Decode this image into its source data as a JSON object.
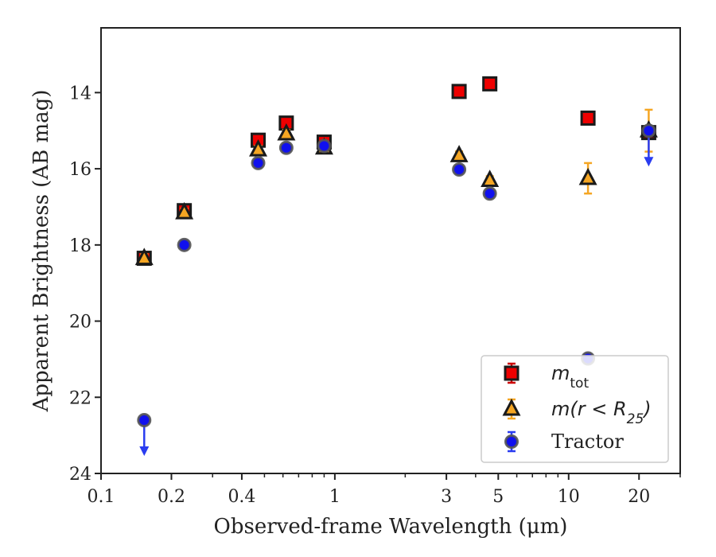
{
  "chart_data": {
    "type": "scatter",
    "xlabel": "Observed-frame Wavelength (μm)",
    "ylabel": "Apparent Brightness (AB mag)",
    "xscale": "log",
    "xlim": [
      0.1,
      30
    ],
    "ylim": [
      24,
      12.3
    ],
    "y_inverted": true,
    "x_ticks": [
      {
        "value": 0.1,
        "label": "0.1"
      },
      {
        "value": 0.2,
        "label": "0.2"
      },
      {
        "value": 0.4,
        "label": "0.4"
      },
      {
        "value": 1,
        "label": "1"
      },
      {
        "value": 3,
        "label": "3"
      },
      {
        "value": 5,
        "label": "5"
      },
      {
        "value": 10,
        "label": "10"
      },
      {
        "value": 20,
        "label": "20"
      }
    ],
    "y_ticks": [
      {
        "value": 14,
        "label": "14"
      },
      {
        "value": 16,
        "label": "16"
      },
      {
        "value": 18,
        "label": "18"
      },
      {
        "value": 20,
        "label": "20"
      },
      {
        "value": 22,
        "label": "22"
      },
      {
        "value": 24,
        "label": "24"
      }
    ],
    "legend_position": "lower-right",
    "series": [
      {
        "name": "m_tot",
        "legend_main": "m",
        "legend_sub": "tot",
        "marker": "square",
        "color": "#ee0000",
        "errcolor": "#cc0000",
        "points": [
          {
            "x": 0.153,
            "y": 18.35,
            "err": 0.1
          },
          {
            "x": 0.227,
            "y": 17.1,
            "err": 0.1
          },
          {
            "x": 0.47,
            "y": 15.25,
            "err": 0.08
          },
          {
            "x": 0.62,
            "y": 14.8,
            "err": 0.08
          },
          {
            "x": 0.9,
            "y": 15.3,
            "err": 0.08
          },
          {
            "x": 3.4,
            "y": 13.97,
            "err": 0.05
          },
          {
            "x": 4.6,
            "y": 13.77,
            "err": 0.05
          },
          {
            "x": 12.1,
            "y": 14.67,
            "err": 0.05
          },
          {
            "x": 22.0,
            "y": 15.05,
            "err": 0.05
          }
        ]
      },
      {
        "name": "m(r < R25)",
        "legend_main": "m(r < R",
        "legend_sub": "25",
        "legend_tail": ")",
        "marker": "triangle",
        "color": "#f5a623",
        "errcolor": "#f5a623",
        "points": [
          {
            "x": 0.153,
            "y": 18.35,
            "err": 0.1
          },
          {
            "x": 0.227,
            "y": 17.15,
            "err": 0.1
          },
          {
            "x": 0.47,
            "y": 15.5,
            "err": 0.08
          },
          {
            "x": 0.62,
            "y": 15.08,
            "err": 0.08
          },
          {
            "x": 0.9,
            "y": 15.45,
            "err": 0.08
          },
          {
            "x": 3.4,
            "y": 15.65,
            "err": 0.08
          },
          {
            "x": 4.6,
            "y": 16.3,
            "err": 0.1
          },
          {
            "x": 12.1,
            "y": 16.25,
            "err": 0.4
          },
          {
            "x": 22.0,
            "y": 15.0,
            "err": 0.55
          }
        ]
      },
      {
        "name": "Tractor",
        "legend_main": "Tractor",
        "marker": "circle",
        "color": "#1010ee",
        "errcolor": "#2a3cf0",
        "points": [
          {
            "x": 0.153,
            "y": 22.6,
            "upper_limit": true
          },
          {
            "x": 0.227,
            "y": 18.0,
            "err": 0.08
          },
          {
            "x": 0.47,
            "y": 15.85,
            "err": 0.08
          },
          {
            "x": 0.62,
            "y": 15.45,
            "err": 0.08
          },
          {
            "x": 0.9,
            "y": 15.4,
            "err": 0.08
          },
          {
            "x": 3.4,
            "y": 16.02,
            "err": 0.08
          },
          {
            "x": 4.6,
            "y": 16.65,
            "err": 0.08
          },
          {
            "x": 12.1,
            "y": 20.98,
            "err": 0.05
          },
          {
            "x": 22.0,
            "y": 15.0,
            "upper_limit": true
          }
        ]
      }
    ]
  }
}
